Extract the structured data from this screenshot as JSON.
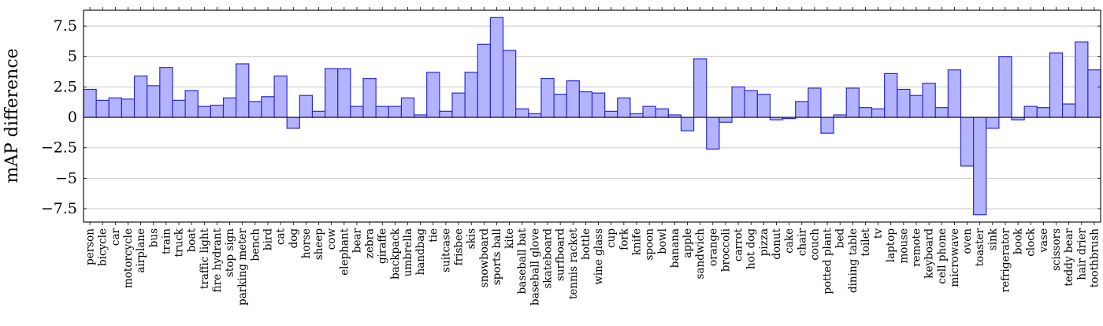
{
  "chart_data": {
    "type": "bar",
    "ylabel": "mAP difference",
    "xlabel": "",
    "title": "",
    "ylim": [
      -8.6,
      8.8
    ],
    "yticks": [
      -7.5,
      -5,
      -2.5,
      0,
      2.5,
      5,
      7.5
    ],
    "ytick_labels": [
      "−7.5",
      "−5",
      "−2.5",
      "0",
      "2.5",
      "5",
      "7.5"
    ],
    "grid": true,
    "colors": {
      "bar_fill": "#b3b3ff",
      "bar_edge": "#2b2bd0"
    },
    "categories": [
      "person",
      "bicycle",
      "car",
      "motorcycle",
      "airplane",
      "bus",
      "train",
      "truck",
      "boat",
      "traffic light",
      "fire hydrant",
      "stop sign",
      "parking meter",
      "bench",
      "bird",
      "cat",
      "dog",
      "horse",
      "sheep",
      "cow",
      "elephant",
      "bear",
      "zebra",
      "giraffe",
      "backpack",
      "umbrella",
      "handbag",
      "tie",
      "suitcase",
      "frisbee",
      "skis",
      "snowboard",
      "sports ball",
      "kite",
      "baseball bat",
      "baseball glove",
      "skateboard",
      "surfboard",
      "tennis racket",
      "bottle",
      "wine glass",
      "cup",
      "fork",
      "knife",
      "spoon",
      "bowl",
      "banana",
      "apple",
      "sandwich",
      "orange",
      "broccoli",
      "carrot",
      "hot dog",
      "pizza",
      "donut",
      "cake",
      "chair",
      "couch",
      "potted plant",
      "bed",
      "dining table",
      "toilet",
      "tv",
      "laptop",
      "mouse",
      "remote",
      "keyboard",
      "cell phone",
      "microwave",
      "oven",
      "toaster",
      "sink",
      "refrigerator",
      "book",
      "clock",
      "vase",
      "scissors",
      "teddy bear",
      "hair drier",
      "toothbrush"
    ],
    "values": [
      2.3,
      1.4,
      1.6,
      1.5,
      3.4,
      2.6,
      4.1,
      1.4,
      2.2,
      0.9,
      1.0,
      1.6,
      4.4,
      1.3,
      1.7,
      3.4,
      -0.9,
      1.8,
      0.5,
      4.0,
      4.0,
      0.9,
      3.2,
      0.9,
      0.9,
      1.6,
      0.2,
      3.7,
      0.5,
      2.0,
      3.7,
      6.0,
      8.2,
      5.5,
      0.7,
      0.3,
      3.2,
      1.9,
      3.0,
      2.1,
      2.0,
      0.5,
      1.6,
      0.3,
      0.9,
      0.7,
      0.2,
      -1.1,
      4.8,
      -2.6,
      -0.4,
      2.5,
      2.2,
      1.9,
      -0.2,
      -0.1,
      1.3,
      2.4,
      -1.3,
      0.2,
      2.4,
      0.8,
      0.7,
      3.6,
      2.3,
      1.8,
      2.8,
      0.8,
      3.9,
      -4.0,
      -8.0,
      -0.9,
      5.0,
      -0.2,
      0.9,
      0.8,
      5.3,
      1.1,
      6.2,
      3.9
    ]
  }
}
